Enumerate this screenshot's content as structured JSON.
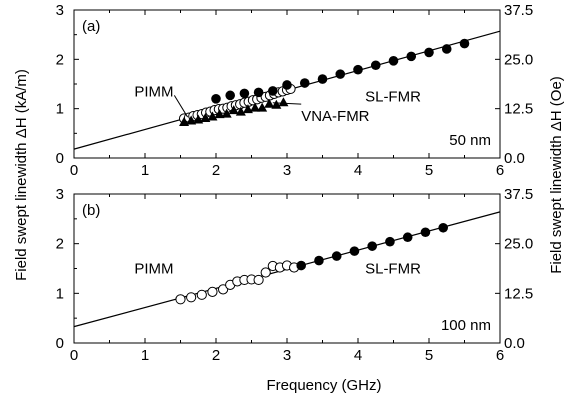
{
  "chart_data": [
    {
      "type": "scatter",
      "panel_label": "(a)",
      "thickness_label": "50 nm",
      "xlim": [
        0,
        6
      ],
      "ylim": [
        0,
        3
      ],
      "ylim_right": [
        0,
        37.5
      ],
      "x_ticks": [
        "0",
        "1",
        "2",
        "3",
        "4",
        "5",
        "6"
      ],
      "y_ticks": [
        "0",
        "1",
        "2",
        "3"
      ],
      "y_ticks_right": [
        "0.0",
        "12.5",
        "25.0",
        "37.5"
      ],
      "grid": false,
      "fit_line": {
        "x": [
          0,
          6
        ],
        "y": [
          0.18,
          2.57
        ]
      },
      "annotations": [
        {
          "text": "PIMM",
          "x": 0.85,
          "y": 1.35,
          "arrow_to": [
            1.6,
            0.83
          ]
        },
        {
          "text": "VNA-FMR",
          "x": 3.2,
          "y": 0.85,
          "arrow_to": [
            2.8,
            1.12
          ]
        },
        {
          "text": "SL-FMR",
          "x": 4.1,
          "y": 1.25
        }
      ],
      "series": [
        {
          "name": "PIMM",
          "marker": "open-circle",
          "x": [
            1.55,
            1.62,
            1.68,
            1.74,
            1.8,
            1.86,
            1.92,
            1.98,
            2.04,
            2.1,
            2.16,
            2.22,
            2.28,
            2.34,
            2.4,
            2.46,
            2.52,
            2.58,
            2.64,
            2.7,
            2.76,
            2.82,
            2.88,
            2.94,
            3.0,
            3.05
          ],
          "y": [
            0.8,
            0.82,
            0.85,
            0.87,
            0.89,
            0.92,
            0.94,
            0.97,
            0.99,
            1.0,
            1.02,
            1.05,
            1.07,
            1.09,
            1.12,
            1.14,
            1.17,
            1.19,
            1.22,
            1.24,
            1.27,
            1.3,
            1.33,
            1.35,
            1.38,
            1.4
          ]
        },
        {
          "name": "VNA-FMR",
          "marker": "filled-triangle",
          "x": [
            1.55,
            1.65,
            1.75,
            1.85,
            1.95,
            2.05,
            2.15,
            2.25,
            2.35,
            2.45,
            2.55,
            2.65,
            2.75,
            2.85,
            2.95
          ],
          "y": [
            0.73,
            0.76,
            0.78,
            0.81,
            0.84,
            0.89,
            0.9,
            0.97,
            0.94,
            0.99,
            1.02,
            1.02,
            1.1,
            1.08,
            1.13
          ]
        },
        {
          "name": "SL-FMR",
          "marker": "filled-circle",
          "x": [
            2.0,
            2.2,
            2.4,
            2.6,
            2.8,
            3.0,
            3.25,
            3.5,
            3.75,
            4.0,
            4.25,
            4.5,
            4.75,
            5.0,
            5.25,
            5.5
          ],
          "y": [
            1.2,
            1.27,
            1.31,
            1.33,
            1.36,
            1.48,
            1.52,
            1.6,
            1.7,
            1.79,
            1.88,
            1.97,
            2.06,
            2.14,
            2.21,
            2.32
          ]
        }
      ]
    },
    {
      "type": "scatter",
      "panel_label": "(b)",
      "thickness_label": "100 nm",
      "xlim": [
        0,
        6
      ],
      "ylim": [
        0,
        3
      ],
      "ylim_right": [
        0,
        37.5
      ],
      "x_ticks": [
        "0",
        "1",
        "2",
        "3",
        "4",
        "5",
        "6"
      ],
      "y_ticks": [
        "0",
        "1",
        "2",
        "3"
      ],
      "y_ticks_right": [
        "0.0",
        "12.5",
        "25.0",
        "37.5"
      ],
      "grid": false,
      "fit_line": {
        "x": [
          0,
          6
        ],
        "y": [
          0.33,
          2.64
        ]
      },
      "annotations": [
        {
          "text": "PIMM",
          "x": 0.85,
          "y": 1.5
        },
        {
          "text": "SL-FMR",
          "x": 4.1,
          "y": 1.5
        }
      ],
      "series": [
        {
          "name": "PIMM",
          "marker": "open-circle",
          "x": [
            1.5,
            1.65,
            1.8,
            1.95,
            2.1,
            2.2,
            2.3,
            2.4,
            2.5,
            2.6,
            2.7,
            2.8,
            2.9,
            3.0,
            3.1
          ],
          "y": [
            0.88,
            0.92,
            0.97,
            1.03,
            1.08,
            1.17,
            1.24,
            1.27,
            1.28,
            1.27,
            1.42,
            1.55,
            1.52,
            1.56,
            1.52
          ]
        },
        {
          "name": "SL-FMR",
          "marker": "filled-circle",
          "x": [
            3.2,
            3.45,
            3.7,
            3.95,
            4.2,
            4.45,
            4.7,
            4.95,
            5.2
          ],
          "y": [
            1.56,
            1.66,
            1.75,
            1.85,
            1.95,
            2.04,
            2.13,
            2.23,
            2.32
          ]
        }
      ]
    }
  ],
  "shared": {
    "xlabel": "Frequency (GHz)",
    "ylabel_left": "Field swept linewidth ΔH (kA/m)",
    "ylabel_right": "Field swept linewidth ΔH (Oe)"
  }
}
